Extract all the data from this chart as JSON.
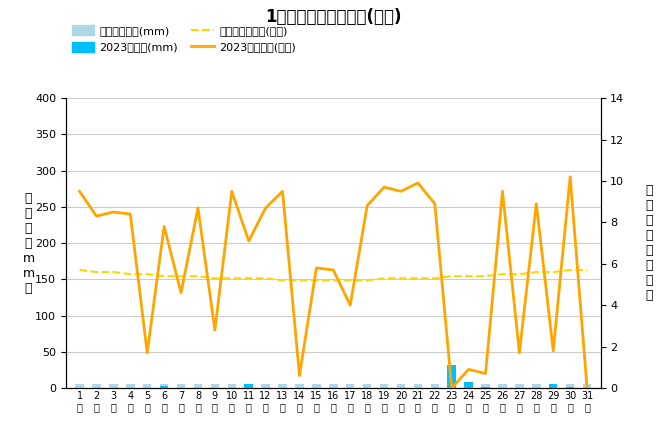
{
  "title": "1月降水量・日照時間(日別)",
  "days": [
    1,
    2,
    3,
    4,
    5,
    6,
    7,
    8,
    9,
    10,
    11,
    12,
    13,
    14,
    15,
    16,
    17,
    18,
    19,
    20,
    21,
    22,
    23,
    24,
    25,
    26,
    27,
    28,
    29,
    30,
    31
  ],
  "precip_2023": [
    0,
    0,
    0,
    0,
    0,
    3,
    0,
    0,
    0,
    0,
    5,
    0,
    0,
    0,
    0,
    0,
    0,
    0,
    0,
    0,
    0,
    0,
    32,
    8,
    2,
    0,
    0,
    0,
    5,
    2,
    0
  ],
  "precip_avg": [
    5,
    5,
    5,
    5,
    5,
    5,
    5,
    5,
    5,
    5,
    5,
    5,
    5,
    5,
    5,
    5,
    5,
    5,
    5,
    5,
    5,
    5,
    5,
    5,
    5,
    5,
    5,
    5,
    5,
    5,
    5
  ],
  "sunshine_2023": [
    9.5,
    8.3,
    8.5,
    8.4,
    1.7,
    7.8,
    4.6,
    8.7,
    2.8,
    9.5,
    7.1,
    8.7,
    9.5,
    0.6,
    5.8,
    5.7,
    4.0,
    8.8,
    9.7,
    9.5,
    9.9,
    8.9,
    0.0,
    0.9,
    0.7,
    9.5,
    1.7,
    8.9,
    1.8,
    10.2,
    0.0
  ],
  "sunshine_avg": [
    5.7,
    5.6,
    5.6,
    5.5,
    5.5,
    5.4,
    5.4,
    5.4,
    5.3,
    5.3,
    5.3,
    5.3,
    5.2,
    5.2,
    5.2,
    5.2,
    5.2,
    5.2,
    5.3,
    5.3,
    5.3,
    5.3,
    5.4,
    5.4,
    5.4,
    5.5,
    5.5,
    5.6,
    5.6,
    5.7,
    5.7
  ],
  "ylabel_left": "降\n水\n量\n（\nm\nm\n）",
  "ylabel_right": "日\n照\n時\n間\n（\n時\n間\n）",
  "ylim_left": [
    0,
    400
  ],
  "ylim_right": [
    0,
    14
  ],
  "yticks_left": [
    0,
    50,
    100,
    150,
    200,
    250,
    300,
    350,
    400
  ],
  "yticks_right": [
    0,
    2,
    4,
    6,
    8,
    10,
    12,
    14
  ],
  "precip_avg_color": "#add8e6",
  "precip_2023_color": "#00bfff",
  "sunshine_avg_color": "#FFD700",
  "sunshine_2023_color": "#FFA500",
  "legend_precip_avg": "降水量平年値(mm)",
  "legend_precip_2023": "2023降水量(mm)",
  "legend_sunshine_avg": "日照時間平年値(時間)",
  "legend_sunshine_2023": "2023日照時間(時間)",
  "bg_color": "#ffffff",
  "grid_color": "#cccccc"
}
